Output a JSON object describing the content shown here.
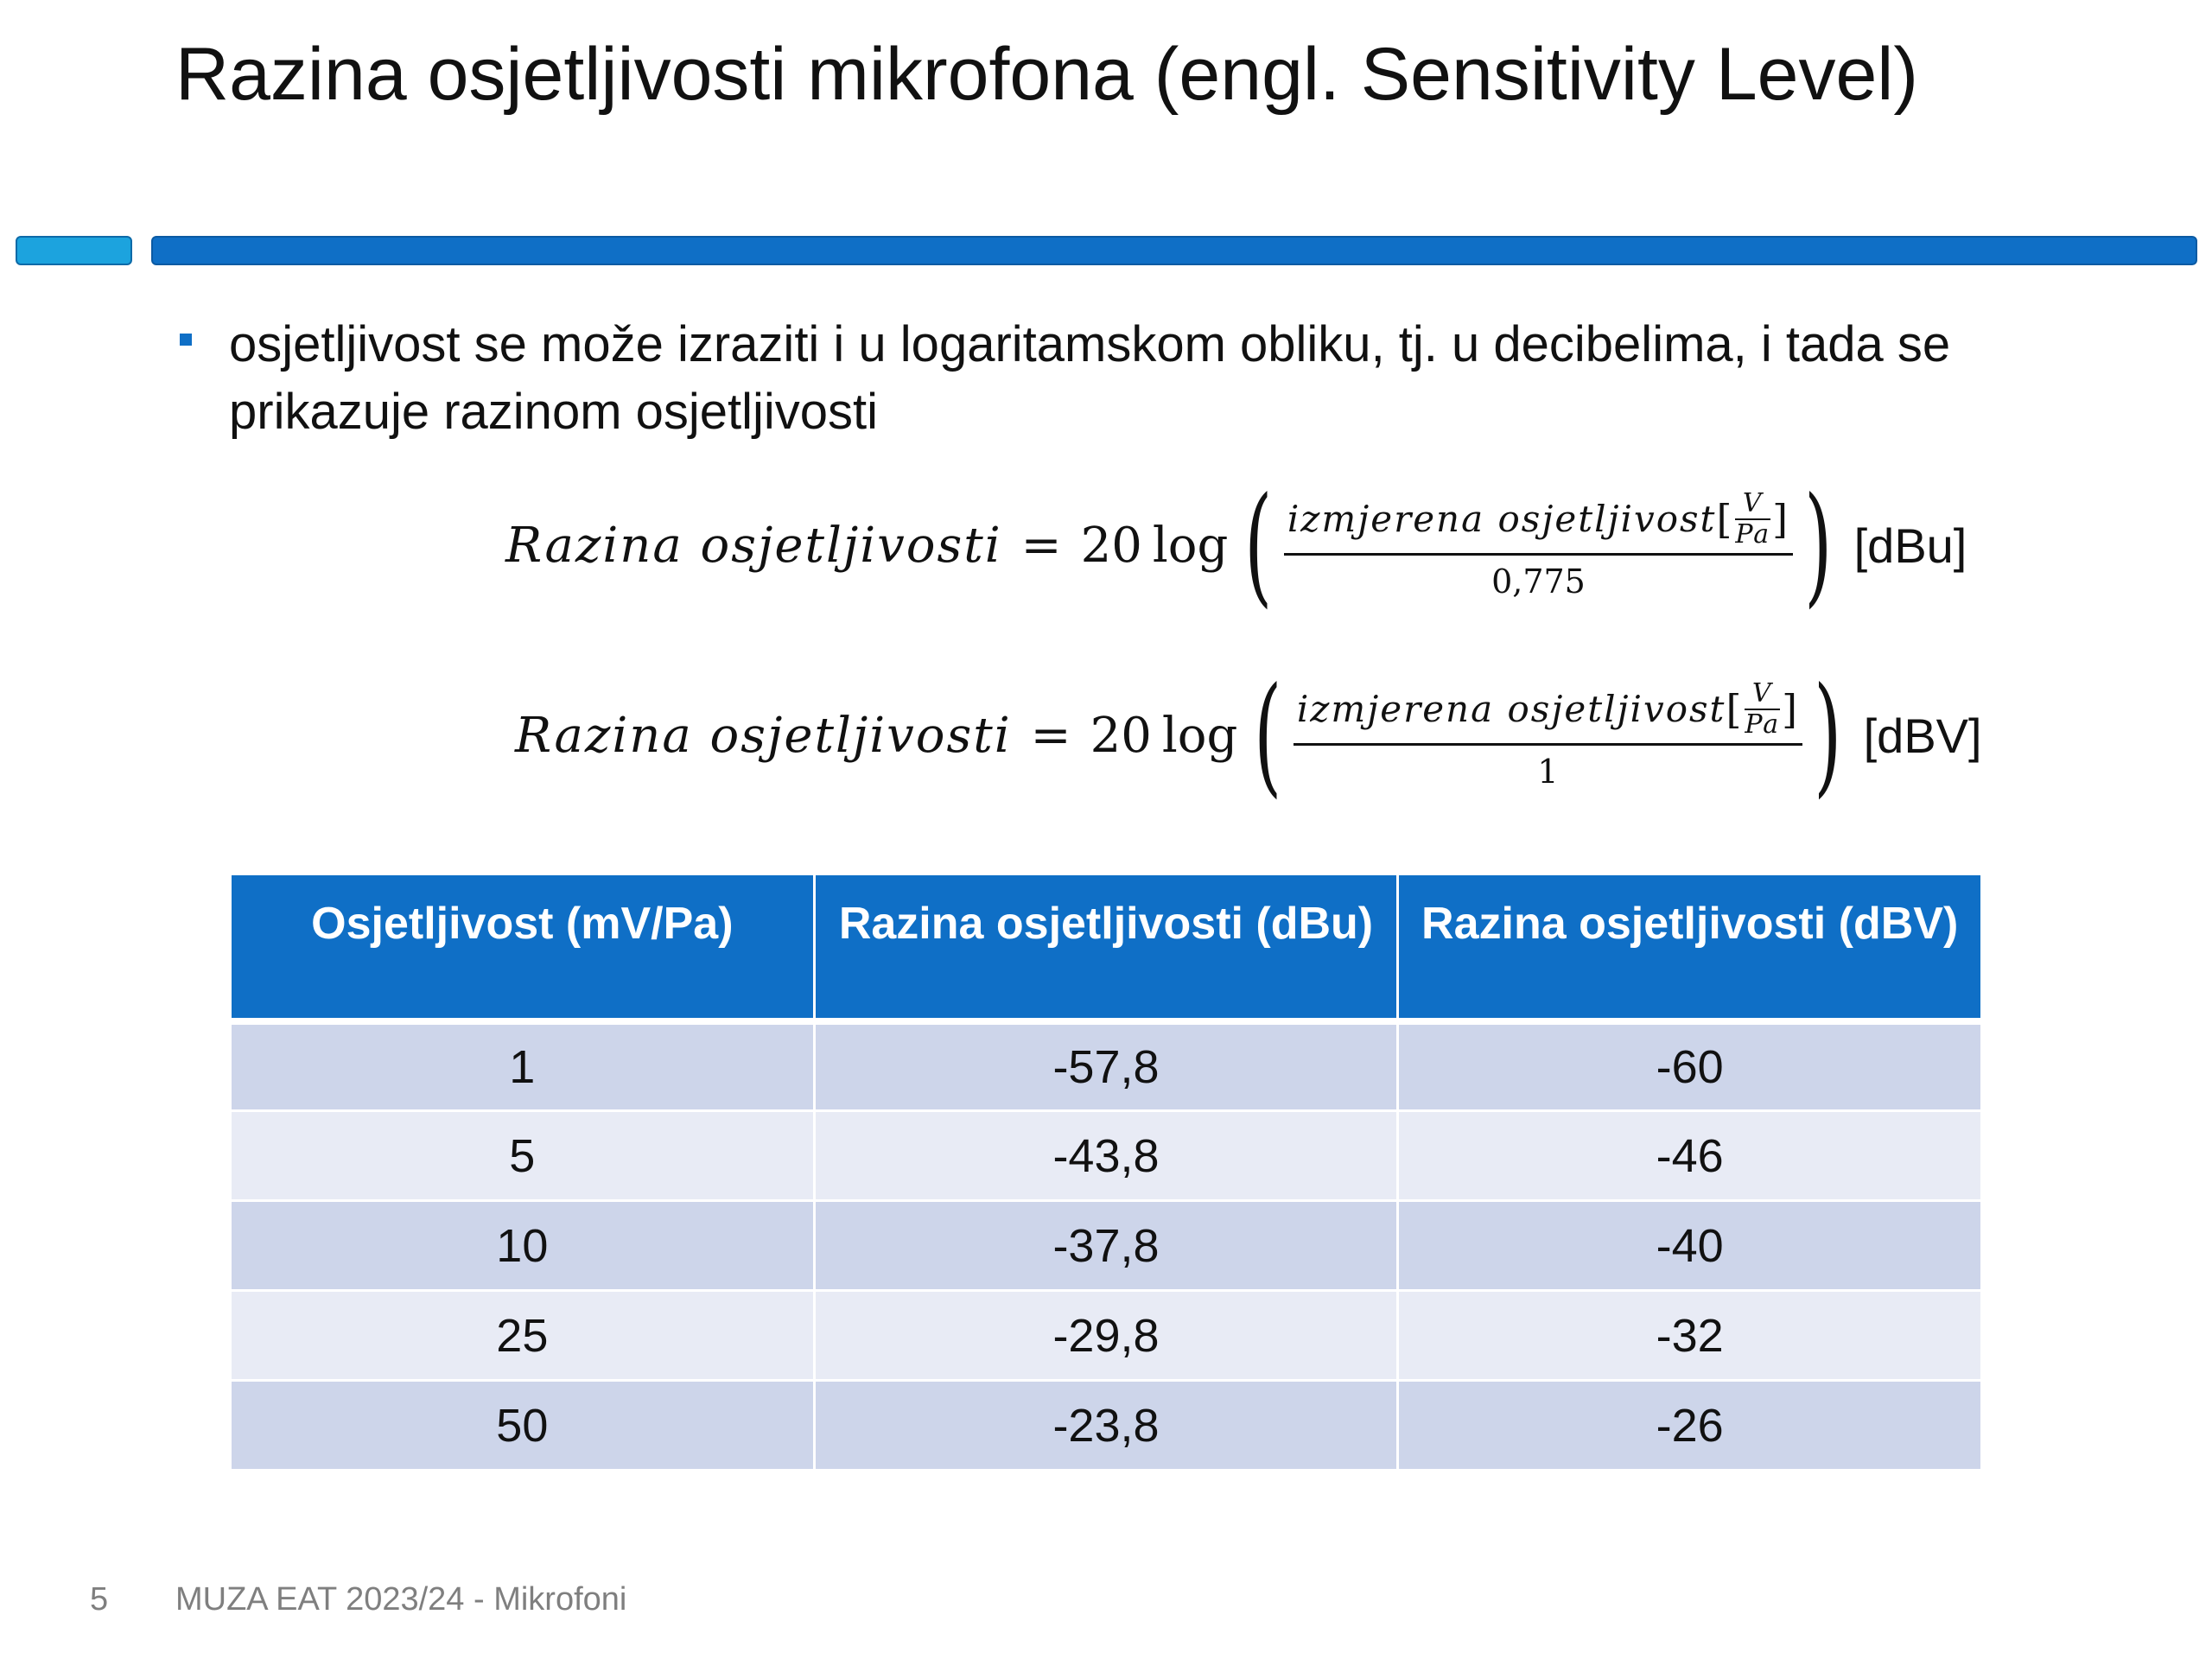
{
  "slide": {
    "title": "Razina osjetljivosti mikrofona (engl. Sensitivity Level)",
    "bullet": "osjetljivost se može izraziti i u logaritamskom obliku, tj. u decibelima, i tada se prikazuje razinom osjetljivosti"
  },
  "formulas": [
    {
      "lhs": "Razina osjetljivosti",
      "equals": "=",
      "coefficient": "20",
      "log": "log",
      "numerator": "izmjerena osjetljivost",
      "unit_top": "V",
      "unit_bottom": "Pa",
      "bracket_open": "[",
      "bracket_close": "]",
      "denominator": "0,775",
      "unit": "[dBu]"
    },
    {
      "lhs": "Razina osjetljivosti",
      "equals": "=",
      "coefficient": "20",
      "log": "log",
      "numerator": "izmjerena osjetljivost",
      "unit_top": "V",
      "unit_bottom": "Pa",
      "bracket_open": "[",
      "bracket_close": "]",
      "denominator": "1",
      "unit": "[dBV]"
    }
  ],
  "table": {
    "headers": [
      "Osjetljivost (mV/Pa)",
      "Razina osjetljivosti (dBu)",
      "Razina osjetljivosti (dBV)"
    ],
    "rows": [
      [
        "1",
        "-57,8",
        "-60"
      ],
      [
        "5",
        "-43,8",
        "-46"
      ],
      [
        "10",
        "-37,8",
        "-40"
      ],
      [
        "25",
        "-29,8",
        "-32"
      ],
      [
        "50",
        "-23,8",
        "-26"
      ]
    ]
  },
  "footer": {
    "page_number": "5",
    "text": "MUZA EAT 2023/24 - Mikrofoni"
  },
  "colors": {
    "accent_blue": "#0f6fc6",
    "accent_light_blue": "#1ca3de",
    "row_dark": "#cdd5ea",
    "row_light": "#e8ebf5"
  }
}
